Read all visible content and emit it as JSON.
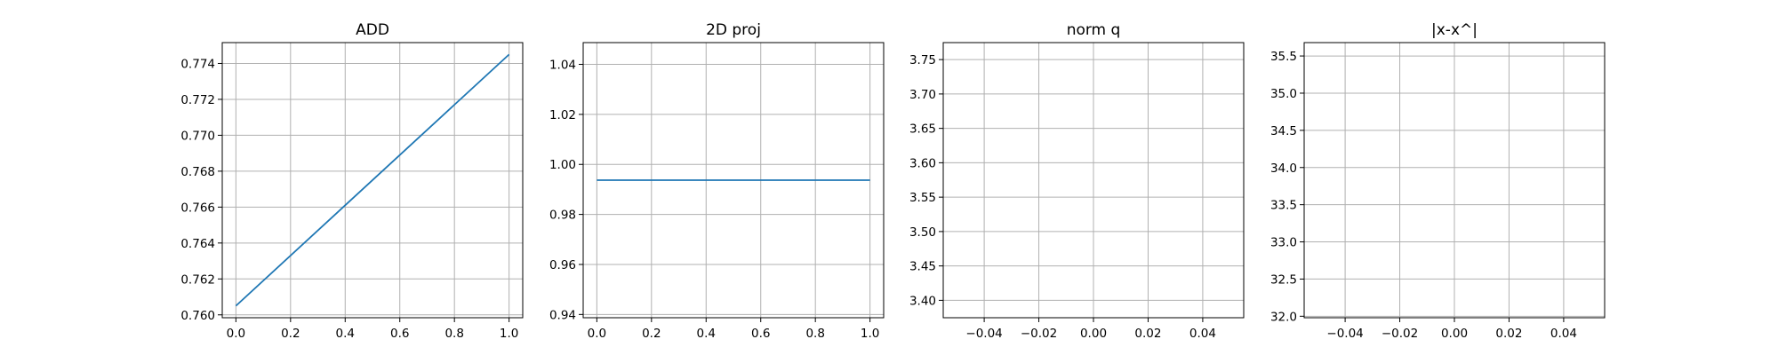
{
  "chart_data": [
    {
      "type": "line",
      "title": "ADD",
      "xlabel": "",
      "ylabel": "",
      "grid": true,
      "xlim": [
        -0.05,
        1.05
      ],
      "ylim": [
        0.75984,
        0.77516
      ],
      "xticks": [
        0.0,
        0.2,
        0.4,
        0.6,
        0.8,
        1.0
      ],
      "xtick_labels": [
        "0.0",
        "0.2",
        "0.4",
        "0.6",
        "0.8",
        "1.0"
      ],
      "yticks": [
        0.76,
        0.762,
        0.764,
        0.766,
        0.768,
        0.77,
        0.772,
        0.774
      ],
      "ytick_labels": [
        "0.760",
        "0.762",
        "0.764",
        "0.766",
        "0.768",
        "0.770",
        "0.772",
        "0.774"
      ],
      "series": [
        {
          "name": "ADD",
          "color": "#1f77b4",
          "x": [
            0,
            1
          ],
          "y": [
            0.7605,
            0.7745
          ]
        }
      ]
    },
    {
      "type": "line",
      "title": "2D proj",
      "xlabel": "",
      "ylabel": "",
      "grid": true,
      "xlim": [
        -0.05,
        1.05
      ],
      "ylim": [
        0.9387,
        1.0487
      ],
      "xticks": [
        0.0,
        0.2,
        0.4,
        0.6,
        0.8,
        1.0
      ],
      "xtick_labels": [
        "0.0",
        "0.2",
        "0.4",
        "0.6",
        "0.8",
        "1.0"
      ],
      "yticks": [
        0.94,
        0.96,
        0.98,
        1.0,
        1.02,
        1.04
      ],
      "ytick_labels": [
        "0.94",
        "0.96",
        "0.98",
        "1.00",
        "1.02",
        "1.04"
      ],
      "series": [
        {
          "name": "2D proj",
          "color": "#1f77b4",
          "x": [
            0,
            1
          ],
          "y": [
            0.9937,
            0.9937
          ]
        }
      ]
    },
    {
      "type": "line",
      "title": "norm q",
      "xlabel": "",
      "ylabel": "",
      "grid": true,
      "xlim": [
        -0.055,
        0.055
      ],
      "ylim": [
        3.3747,
        3.7747
      ],
      "xticks": [
        -0.04,
        -0.02,
        0.0,
        0.02,
        0.04
      ],
      "xtick_labels": [
        "−0.04",
        "−0.02",
        "0.00",
        "0.02",
        "0.04"
      ],
      "yticks": [
        3.4,
        3.45,
        3.5,
        3.55,
        3.6,
        3.65,
        3.7,
        3.75
      ],
      "ytick_labels": [
        "3.40",
        "3.45",
        "3.50",
        "3.55",
        "3.60",
        "3.65",
        "3.70",
        "3.75"
      ],
      "series": []
    },
    {
      "type": "line",
      "title": "|x-x^|",
      "xlabel": "",
      "ylabel": "",
      "grid": true,
      "xlim": [
        -0.055,
        0.055
      ],
      "ylim": [
        31.98,
        35.68
      ],
      "xticks": [
        -0.04,
        -0.02,
        0.0,
        0.02,
        0.04
      ],
      "xtick_labels": [
        "−0.04",
        "−0.02",
        "0.00",
        "0.02",
        "0.04"
      ],
      "yticks": [
        32.0,
        32.5,
        33.0,
        33.5,
        34.0,
        34.5,
        35.0,
        35.5
      ],
      "ytick_labels": [
        "32.0",
        "32.5",
        "33.0",
        "33.5",
        "34.0",
        "34.5",
        "35.0",
        "35.5"
      ],
      "series": []
    }
  ]
}
